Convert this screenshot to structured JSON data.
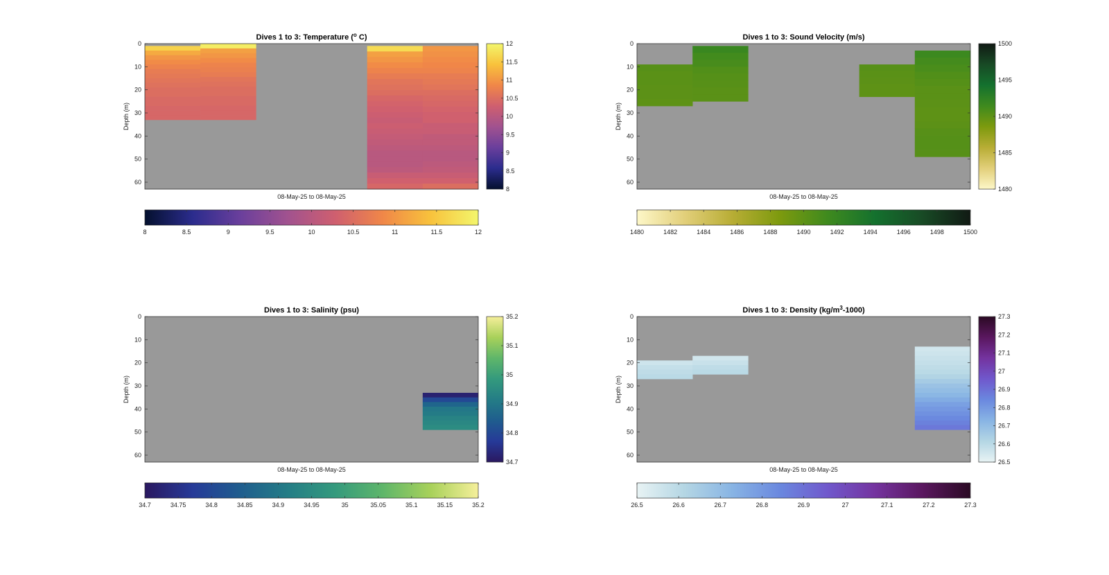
{
  "figure": {
    "background": "#ffffff",
    "no_data_color": "#999999"
  },
  "chart_data": [
    {
      "type": "heatmap",
      "title": "Dives 1 to 3: Temperature (",
      "title_sup": "o",
      "title_tail": " C)",
      "ylabel": "Depth (m)",
      "xlabel": "08-May-25 to 08-May-25",
      "ylim": [
        0,
        63
      ],
      "ylim_reversed": true,
      "yticks": [
        0,
        10,
        20,
        30,
        40,
        50,
        60
      ],
      "n_columns": 6,
      "clim": [
        8,
        12
      ],
      "colormap": [
        "#04102e",
        "#2b2c8d",
        "#6a3f9c",
        "#a1528f",
        "#cf5f6f",
        "#f08748",
        "#f8c23c",
        "#f3f66c"
      ],
      "colorbar_ticks_vertical": [
        "12",
        "11.5",
        "11",
        "10.5",
        "10",
        "9.5",
        "9",
        "8.5",
        "8"
      ],
      "colorbar_ticks_horizontal": [
        "8",
        "8.5",
        "9",
        "9.5",
        "10",
        "10.5",
        "11",
        "11.5",
        "12"
      ],
      "columns": [
        {
          "depth_min": 1,
          "depth_max": 33,
          "values": [
            11.6,
            11.2,
            11.0,
            10.9,
            10.8,
            10.7,
            10.65,
            10.6,
            10.55,
            10.5,
            10.5,
            10.45,
            10.45,
            10.4,
            10.4,
            10.4
          ]
        },
        {
          "depth_min": 0,
          "depth_max": 33,
          "values": [
            11.9,
            11.1,
            11.0,
            10.9,
            10.8,
            10.75,
            10.7,
            10.6,
            10.55,
            10.5,
            10.5,
            10.45,
            10.45,
            10.4,
            10.4,
            10.4
          ]
        },
        {
          "depth_min": null,
          "depth_max": null,
          "values": []
        },
        {
          "depth_min": null,
          "depth_max": null,
          "values": []
        },
        {
          "depth_min": 1,
          "depth_max": 63,
          "values": [
            11.7,
            11.1,
            11.0,
            10.9,
            10.8,
            10.7,
            10.6,
            10.55,
            10.5,
            10.4,
            10.35,
            10.3,
            10.25,
            10.2,
            10.25,
            10.2,
            10.15,
            10.1,
            10.05,
            10.0,
            10.0,
            10.0,
            10.05,
            10.2,
            10.3,
            10.4
          ]
        },
        {
          "depth_min": 1,
          "depth_max": 63,
          "values": [
            11.0,
            10.95,
            10.9,
            10.85,
            10.8,
            10.7,
            10.65,
            10.6,
            10.5,
            10.45,
            10.4,
            10.35,
            10.3,
            10.3,
            10.2,
            10.2,
            10.1,
            10.1,
            10.05,
            10.0,
            10.0,
            10.05,
            10.1,
            10.2,
            10.3,
            10.5
          ]
        }
      ]
    },
    {
      "type": "heatmap",
      "title": "Dives 1 to 3: Sound Velocity (m/s)",
      "title_sup": "",
      "title_tail": "",
      "ylabel": "Depth (m)",
      "xlabel": "08-May-25 to 08-May-25",
      "ylim": [
        0,
        63
      ],
      "ylim_reversed": true,
      "yticks": [
        0,
        10,
        20,
        30,
        40,
        50,
        60
      ],
      "n_columns": 6,
      "clim": [
        1480,
        1500
      ],
      "colormap": [
        "#fdf7c8",
        "#e2cf7a",
        "#b8ad35",
        "#7d9a0e",
        "#3f8a1e",
        "#14712e",
        "#184a25",
        "#111a14"
      ],
      "colorbar_ticks_vertical": [
        "1500",
        "1495",
        "1490",
        "1485",
        "1480"
      ],
      "colorbar_ticks_horizontal": [
        "1480",
        "1482",
        "1484",
        "1486",
        "1488",
        "1490",
        "1492",
        "1494",
        "1496",
        "1498",
        "1500"
      ],
      "columns": [
        {
          "depth_min": 9,
          "depth_max": 27,
          "values": [
            1490.3,
            1490.2,
            1490.2,
            1490.1,
            1490.1,
            1490.0
          ]
        },
        {
          "depth_min": 1,
          "depth_max": 25,
          "values": [
            1491.8,
            1491.3,
            1491.0,
            1490.6,
            1490.4,
            1490.3,
            1490.2,
            1490.2
          ]
        },
        {
          "depth_min": null,
          "depth_max": null,
          "values": []
        },
        {
          "depth_min": null,
          "depth_max": null,
          "values": []
        },
        {
          "depth_min": 9,
          "depth_max": 23,
          "values": [
            1490.3,
            1490.2,
            1490.1,
            1490.0,
            1490.0
          ]
        },
        {
          "depth_min": 3,
          "depth_max": 49,
          "values": [
            1491.6,
            1491.2,
            1490.9,
            1490.6,
            1490.4,
            1490.2,
            1490.2,
            1490.1,
            1490.0,
            1490.0,
            1490.1,
            1490.3,
            1490.4,
            1490.4,
            1490.3
          ]
        }
      ]
    },
    {
      "type": "heatmap",
      "title": "Dives 1 to 3: Salinity (psu)",
      "title_sup": "",
      "title_tail": "",
      "ylabel": "Depth (m)",
      "xlabel": "08-May-25 to 08-May-25",
      "ylim": [
        0,
        63
      ],
      "ylim_reversed": true,
      "yticks": [
        0,
        10,
        20,
        30,
        40,
        50,
        60
      ],
      "n_columns": 6,
      "clim": [
        34.7,
        35.2
      ],
      "colormap": [
        "#2a1860",
        "#263a98",
        "#1f5d8e",
        "#247d86",
        "#349a7d",
        "#5fb66a",
        "#a8d15a",
        "#f5ef9a"
      ],
      "colorbar_ticks_vertical": [
        "35.2",
        "35.1",
        "35",
        "34.9",
        "34.8",
        "34.7"
      ],
      "colorbar_ticks_horizontal": [
        "34.7",
        "34.75",
        "34.8",
        "34.85",
        "34.9",
        "34.95",
        "35",
        "35.05",
        "35.1",
        "35.15",
        "35.2"
      ],
      "columns": [
        {
          "depth_min": null,
          "depth_max": null,
          "values": []
        },
        {
          "depth_min": null,
          "depth_max": null,
          "values": []
        },
        {
          "depth_min": null,
          "depth_max": null,
          "values": []
        },
        {
          "depth_min": null,
          "depth_max": null,
          "values": []
        },
        {
          "depth_min": null,
          "depth_max": null,
          "values": []
        },
        {
          "depth_min": 33,
          "depth_max": 49,
          "values": [
            34.72,
            34.8,
            34.86,
            34.9,
            34.91,
            34.93,
            34.94,
            34.95
          ]
        }
      ]
    },
    {
      "type": "heatmap",
      "title": "Dives 1 to 3: Density (kg/m",
      "title_sup": "3",
      "title_tail": "-1000)",
      "ylabel": "Depth (m)",
      "xlabel": "08-May-25 to 08-May-25",
      "ylim": [
        0,
        63
      ],
      "ylim_reversed": true,
      "yticks": [
        0,
        10,
        20,
        30,
        40,
        50,
        60
      ],
      "n_columns": 6,
      "clim": [
        26.5,
        27.3
      ],
      "colormap": [
        "#e8f3f4",
        "#b4d6e4",
        "#88b4e4",
        "#6a88df",
        "#7058cc",
        "#74339f",
        "#5a175f",
        "#2b0a24"
      ],
      "colorbar_ticks_vertical": [
        "27.3",
        "27.2",
        "27.1",
        "27",
        "26.9",
        "26.8",
        "26.7",
        "26.6",
        "26.5"
      ],
      "colorbar_ticks_horizontal": [
        "26.5",
        "26.6",
        "26.7",
        "26.8",
        "26.9",
        "27",
        "27.1",
        "27.2",
        "27.3"
      ],
      "columns": [
        {
          "depth_min": 19,
          "depth_max": 27,
          "values": [
            26.56,
            26.58,
            26.59,
            26.6
          ]
        },
        {
          "depth_min": 17,
          "depth_max": 25,
          "values": [
            26.55,
            26.57,
            26.59,
            26.6
          ]
        },
        {
          "depth_min": null,
          "depth_max": null,
          "values": []
        },
        {
          "depth_min": null,
          "depth_max": null,
          "values": []
        },
        {
          "depth_min": null,
          "depth_max": null,
          "values": []
        },
        {
          "depth_min": 13,
          "depth_max": 49,
          "values": [
            26.55,
            26.56,
            26.57,
            26.58,
            26.59,
            26.6,
            26.62,
            26.65,
            26.68,
            26.7,
            26.72,
            26.75,
            26.78,
            26.8,
            26.82,
            26.84,
            26.86,
            26.88
          ]
        }
      ]
    }
  ]
}
